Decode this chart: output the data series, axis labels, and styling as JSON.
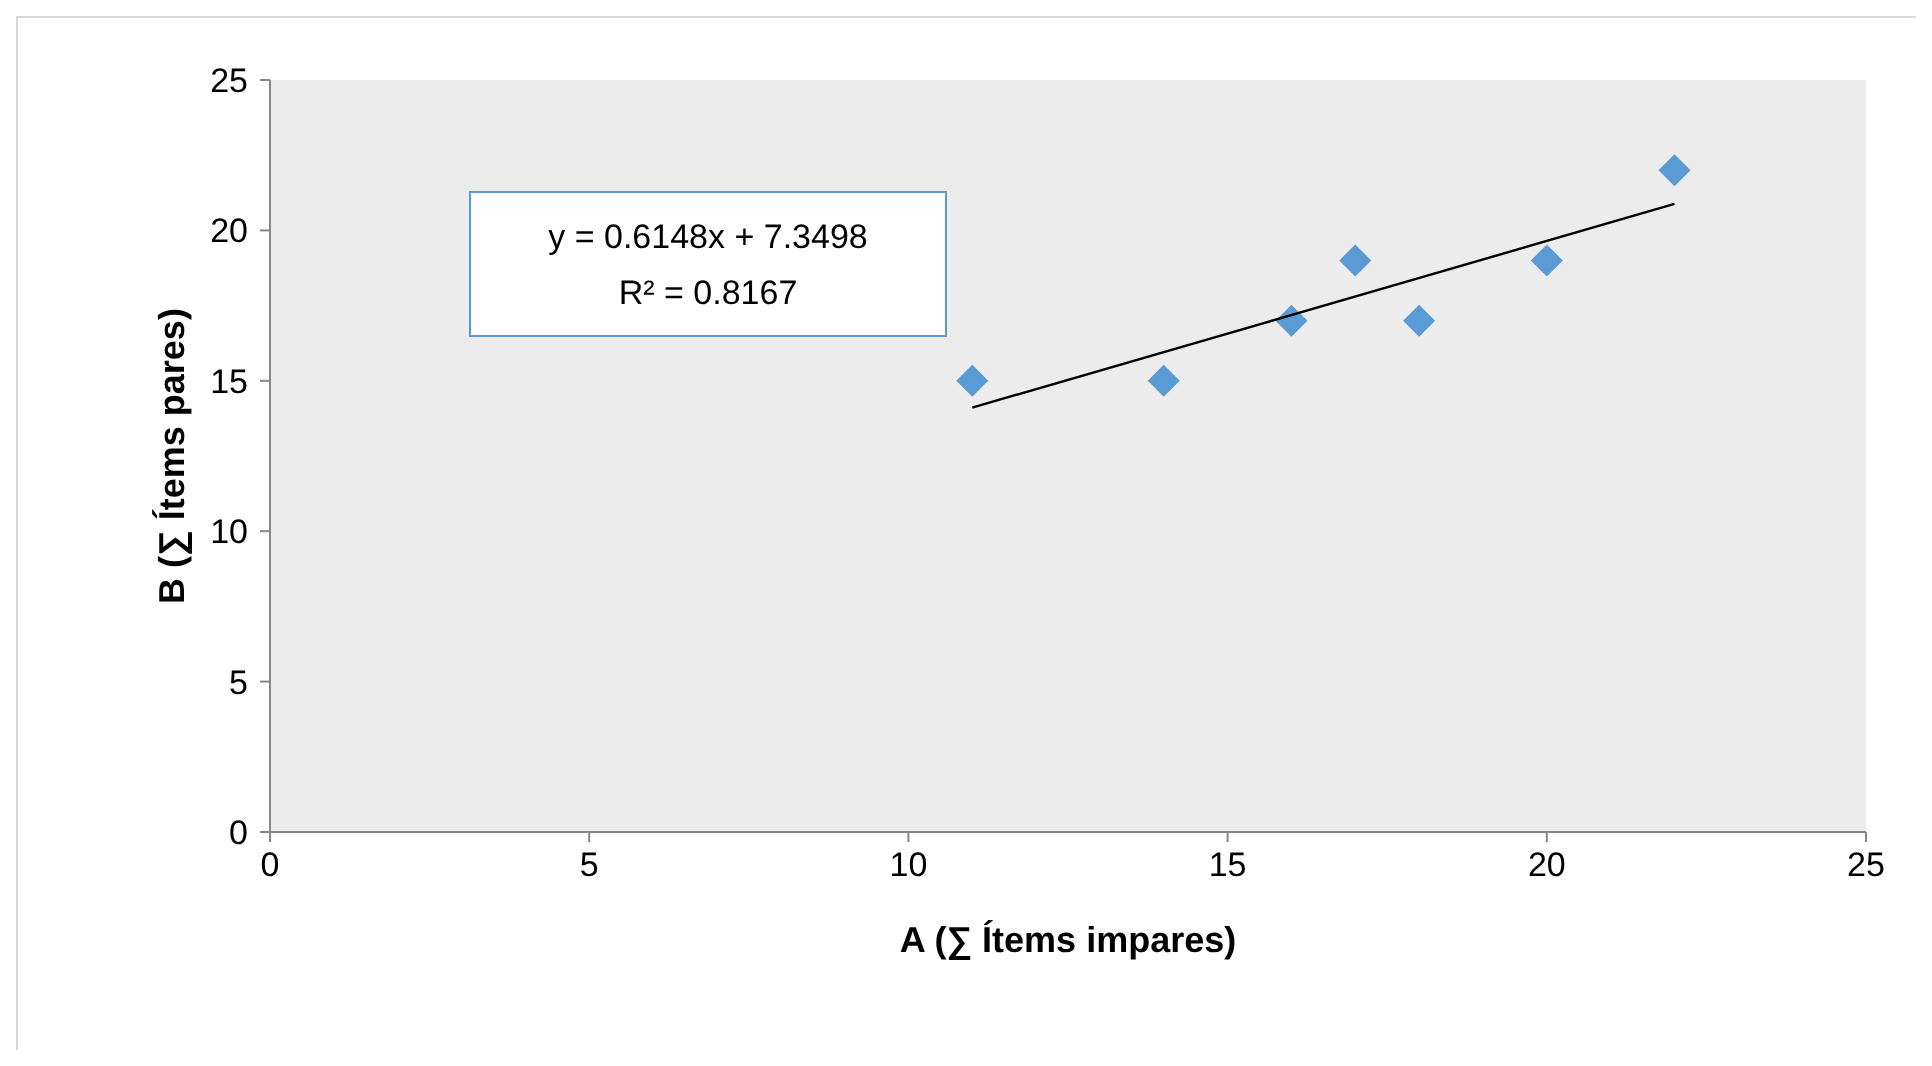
{
  "chart_data": {
    "type": "scatter",
    "xlabel": "A (∑ Ítems impares)",
    "ylabel": "B (∑ Ítems pares)",
    "x": [
      11,
      14,
      16,
      17,
      18,
      20,
      22
    ],
    "series": [
      {
        "color": "#5b9bd5",
        "values": [
          15,
          15,
          17,
          19,
          17,
          19,
          22
        ],
        "marker": "diamond"
      },
      {
        "type": "line",
        "color": "#000000",
        "x": [
          11,
          22
        ],
        "values": [
          14.11,
          20.88
        ],
        "marker": "none",
        "line_style": "solid"
      }
    ],
    "xlim": [
      0,
      25
    ],
    "xticks": [
      0,
      5,
      10,
      15,
      20,
      25
    ],
    "ylim": [
      0,
      25
    ],
    "yticks": [
      0,
      5,
      10,
      15,
      20,
      25
    ],
    "grid": false,
    "annotations": [
      "y = 0.6148x + 7.3498",
      "R² = 0.8167"
    ]
  }
}
